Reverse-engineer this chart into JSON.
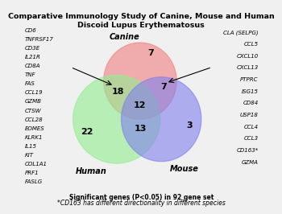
{
  "title": "Comparative Immunology Study of Canine, Mouse and Human\nDiscoid Lupus Erythematosus",
  "title_fontsize": 6.8,
  "footnote1": "Significant genes (P<0.05) in 92 gene set",
  "footnote2": "*CD163 has different directionality in different species",
  "footnote_fontsize": 5.5,
  "canine_label": "Canine",
  "human_label": "Human",
  "mouse_label": "Mouse",
  "label_fontsize": 7,
  "numbers": {
    "canine_only": "7",
    "human_only": "22",
    "mouse_only": "3",
    "canine_human": "18",
    "canine_mouse": "7",
    "human_mouse": "13",
    "all_three": "12"
  },
  "number_fontsize": 8,
  "left_genes": [
    "CD6",
    "TNFRSF17",
    "CD3E",
    "IL21R",
    "CD8A",
    "TNF",
    "FAS",
    "CCL19",
    "GZMB",
    "CTSW",
    "CCL28",
    "EOMES",
    "KLRK1",
    "IL15",
    "KIT",
    "COL1A1",
    "PRF1",
    "FASLG"
  ],
  "right_genes": [
    "CLA (SELPG)",
    "CCL5",
    "CXCL10",
    "CXCL13",
    "PTPRC",
    "ISG15",
    "CD84",
    "USP18",
    "CCL4",
    "CCL3",
    "CD163*",
    "GZMA"
  ],
  "gene_fontsize": 5.0,
  "canine_color": "#F08080",
  "human_color": "#90EE90",
  "mouse_color": "#8080EE",
  "canine_alpha": 0.6,
  "human_alpha": 0.6,
  "mouse_alpha": 0.6,
  "background_color": "#F0F0F0"
}
